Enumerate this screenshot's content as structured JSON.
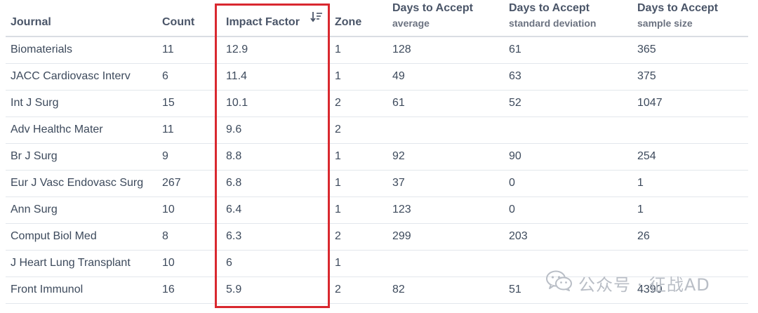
{
  "columns": [
    {
      "label": "Journal",
      "sub": ""
    },
    {
      "label": "Count",
      "sub": ""
    },
    {
      "label": "Impact Factor",
      "sub": "",
      "sort_icon": "sort-descending-icon"
    },
    {
      "label": "Zone",
      "sub": ""
    },
    {
      "label": "Days to Accept",
      "sub": "average"
    },
    {
      "label": "Days to Accept",
      "sub": "standard deviation"
    },
    {
      "label": "Days to Accept",
      "sub": "sample size"
    }
  ],
  "rows": [
    [
      "Biomaterials",
      "11",
      "12.9",
      "1",
      "128",
      "61",
      "365"
    ],
    [
      "JACC Cardiovasc Interv",
      "6",
      "11.4",
      "1",
      "49",
      "63",
      "375"
    ],
    [
      "Int J Surg",
      "15",
      "10.1",
      "2",
      "61",
      "52",
      "1047"
    ],
    [
      "Adv Healthc Mater",
      "11",
      "9.6",
      "2",
      "",
      "",
      ""
    ],
    [
      "Br J Surg",
      "9",
      "8.8",
      "1",
      "92",
      "90",
      "254"
    ],
    [
      "Eur J Vasc Endovasc Surg",
      "267",
      "6.8",
      "1",
      "37",
      "0",
      "1"
    ],
    [
      "Ann Surg",
      "10",
      "6.4",
      "1",
      "123",
      "0",
      "1"
    ],
    [
      "Comput Biol Med",
      "8",
      "6.3",
      "2",
      "299",
      "203",
      "26"
    ],
    [
      "J Heart Lung Transplant",
      "10",
      "6",
      "1",
      "",
      "",
      ""
    ],
    [
      "Front Immunol",
      "16",
      "5.9",
      "2",
      "82",
      "51",
      "4390"
    ]
  ],
  "highlight_color": "#d9282f",
  "watermark": {
    "text": "公众号 · 征战AD",
    "icon": "wechat-icon"
  }
}
